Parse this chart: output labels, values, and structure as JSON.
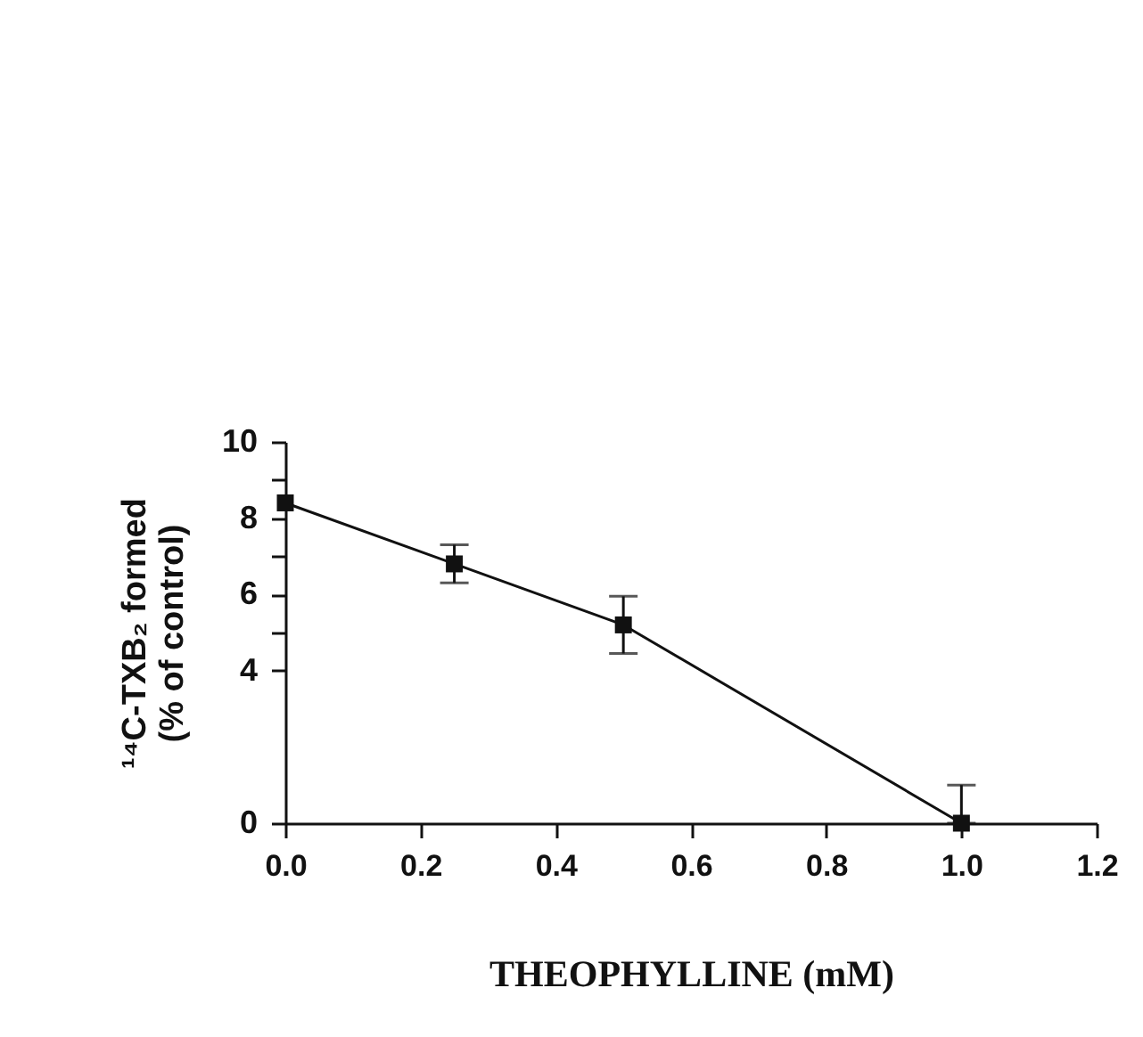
{
  "chart_data": {
    "type": "line",
    "xlabel": "THEOPHYLLINE (mM)",
    "ylabel": "¹⁴C-TXB₂  formed\n(% of control)",
    "x": [
      0,
      0.25,
      0.5,
      1.0
    ],
    "series": [
      {
        "color": "#111111",
        "values": [
          8.4,
          6.8,
          5.2,
          0
        ],
        "errors": [
          null,
          0.5,
          0.75,
          [
            0,
            1.0
          ]
        ]
      }
    ],
    "xlim": [
      0,
      1.2
    ],
    "xticks": [
      {
        "value": 0,
        "label": "0.0"
      },
      {
        "value": 0.2,
        "label": "0.2"
      },
      {
        "value": 0.4,
        "label": "0.4"
      },
      {
        "value": 0.6,
        "label": "0.6"
      },
      {
        "value": 0.8,
        "label": "0.8"
      },
      {
        "value": 1.0,
        "label": "1.0"
      },
      {
        "value": 1.2,
        "label": "1.2"
      }
    ],
    "ylim": [
      0,
      10
    ],
    "yticks": [
      0,
      4,
      {
        "value": 5,
        "label": null
      },
      6,
      {
        "value": 7,
        "label": null
      },
      8,
      {
        "value": 9,
        "label": null
      },
      10
    ],
    "marker": "square",
    "line_style": "solid"
  }
}
